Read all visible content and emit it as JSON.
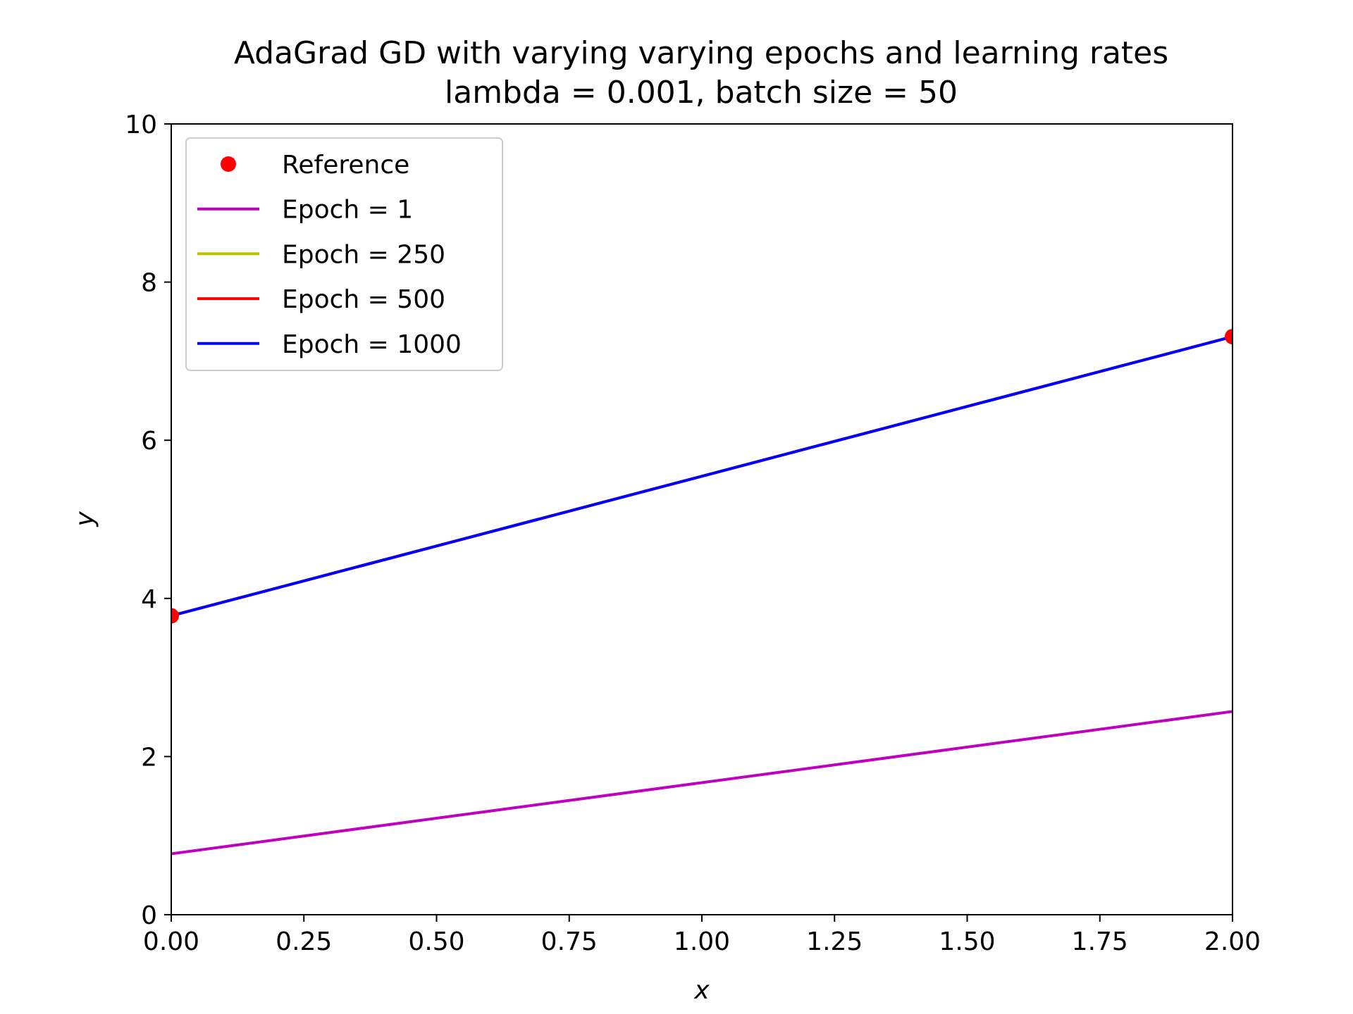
{
  "chart_data": {
    "type": "line",
    "title": "AdaGrad GD with varying varying epochs and learning rates",
    "subtitle": "lambda = 0.001, batch size = 50",
    "xlabel": "x",
    "ylabel": "y",
    "xlim": [
      0,
      2
    ],
    "ylim": [
      0,
      10
    ],
    "xticks": [
      "0.00",
      "0.25",
      "0.50",
      "0.75",
      "1.00",
      "1.25",
      "1.50",
      "1.75",
      "2.00"
    ],
    "yticks": [
      "0",
      "2",
      "4",
      "6",
      "8",
      "10"
    ],
    "grid": false,
    "legend_position": "top-left",
    "reference": {
      "name": "Reference",
      "color": "#ff0000",
      "x": [
        0,
        2
      ],
      "y": [
        3.78,
        7.31
      ]
    },
    "series": [
      {
        "name": "Epoch = 1",
        "color": "#bf00bf",
        "x": [
          0,
          2
        ],
        "y": [
          0.77,
          2.57
        ]
      },
      {
        "name": "Epoch = 250",
        "color": "#bfbf00",
        "x": [
          0,
          2
        ],
        "y": [
          3.78,
          7.31
        ]
      },
      {
        "name": "Epoch = 500",
        "color": "#ff0000",
        "x": [
          0,
          2
        ],
        "y": [
          3.78,
          7.31
        ]
      },
      {
        "name": "Epoch = 1000",
        "color": "#0000ff",
        "x": [
          0,
          2
        ],
        "y": [
          3.78,
          7.31
        ]
      }
    ]
  }
}
